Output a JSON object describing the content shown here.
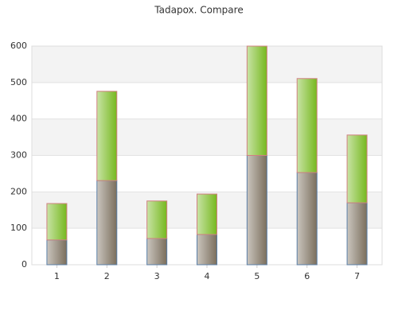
{
  "chart_data": {
    "type": "stacked_bar",
    "title": "Tadapox. Compare",
    "categories": [
      "1",
      "2",
      "3",
      "4",
      "5",
      "6",
      "7"
    ],
    "series": [
      {
        "color": "#7a6e5c",
        "values": [
          68,
          231,
          72,
          83,
          300,
          253,
          170
        ]
      },
      {
        "color": "#76b81e",
        "values": [
          100,
          245,
          103,
          111,
          300,
          258,
          186
        ]
      }
    ],
    "ylim": [
      0,
      600
    ],
    "yticks": [
      0,
      100,
      200,
      300,
      400,
      500,
      600
    ],
    "grid": true
  }
}
